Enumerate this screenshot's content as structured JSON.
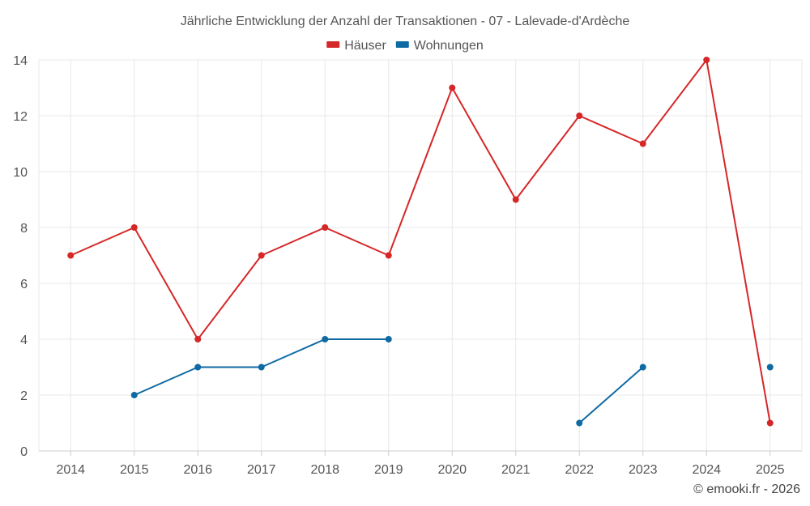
{
  "chart_data": {
    "type": "line",
    "title": "Jährliche Entwicklung der Anzahl der Transaktionen - 07 - Lalevade-d'Ardèche",
    "categories": [
      "2014",
      "2015",
      "2016",
      "2017",
      "2018",
      "2019",
      "2020",
      "2021",
      "2022",
      "2023",
      "2024",
      "2025"
    ],
    "ylim": [
      0,
      14
    ],
    "yticks": [
      0,
      2,
      4,
      6,
      8,
      10,
      12,
      14
    ],
    "grid": true,
    "legend_position": "top-center",
    "series": [
      {
        "name": "Häuser",
        "color": "#d62728",
        "values": [
          7,
          8,
          4,
          7,
          8,
          7,
          13,
          9,
          12,
          11,
          14,
          1
        ]
      },
      {
        "name": "Wohnungen",
        "color": "#0e6aa3",
        "values": [
          null,
          2,
          3,
          3,
          4,
          4,
          null,
          null,
          1,
          3,
          null,
          3
        ]
      }
    ],
    "credit": "© emooki.fr - 2026"
  }
}
